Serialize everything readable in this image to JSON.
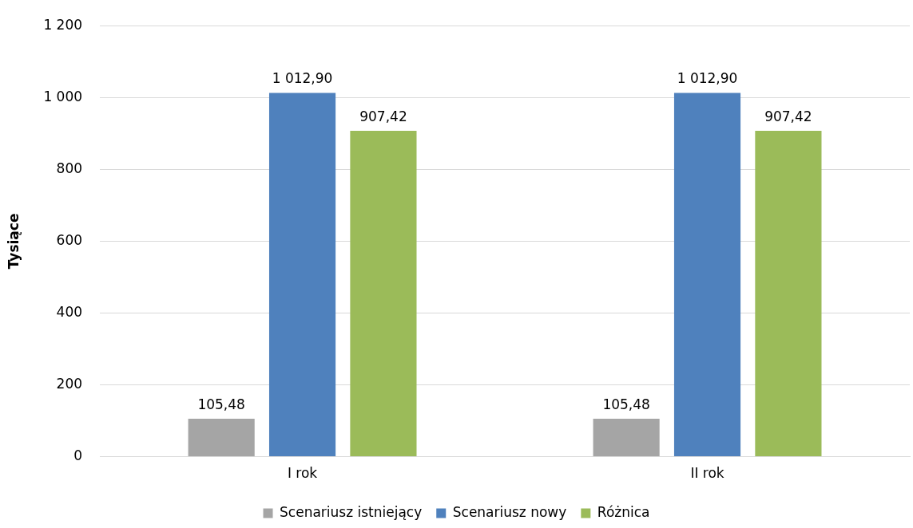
{
  "chart_data": {
    "type": "bar",
    "ylabel": "Tysiące",
    "categories": [
      "I rok",
      "II rok"
    ],
    "series": [
      {
        "name": "Scenariusz istniejący",
        "color": "#a5a5a5",
        "values": [
          105.48,
          105.48
        ],
        "value_labels": [
          "105,48",
          "105,48"
        ]
      },
      {
        "name": "Scenariusz nowy",
        "color": "#4f81bd",
        "values": [
          1012.9,
          1012.9
        ],
        "value_labels": [
          "1 012,90",
          "1 012,90"
        ]
      },
      {
        "name": "Różnica",
        "color": "#9bbb59",
        "values": [
          907.42,
          907.42
        ],
        "value_labels": [
          "907,42",
          "907,42"
        ]
      }
    ],
    "ylim": [
      0,
      1200
    ],
    "yticks": [
      0,
      200,
      400,
      600,
      800,
      {
        "value": 1000,
        "label": "1 000"
      },
      {
        "value": 1200,
        "label": "1 200"
      }
    ],
    "grid": "y",
    "legend": "bottom"
  }
}
